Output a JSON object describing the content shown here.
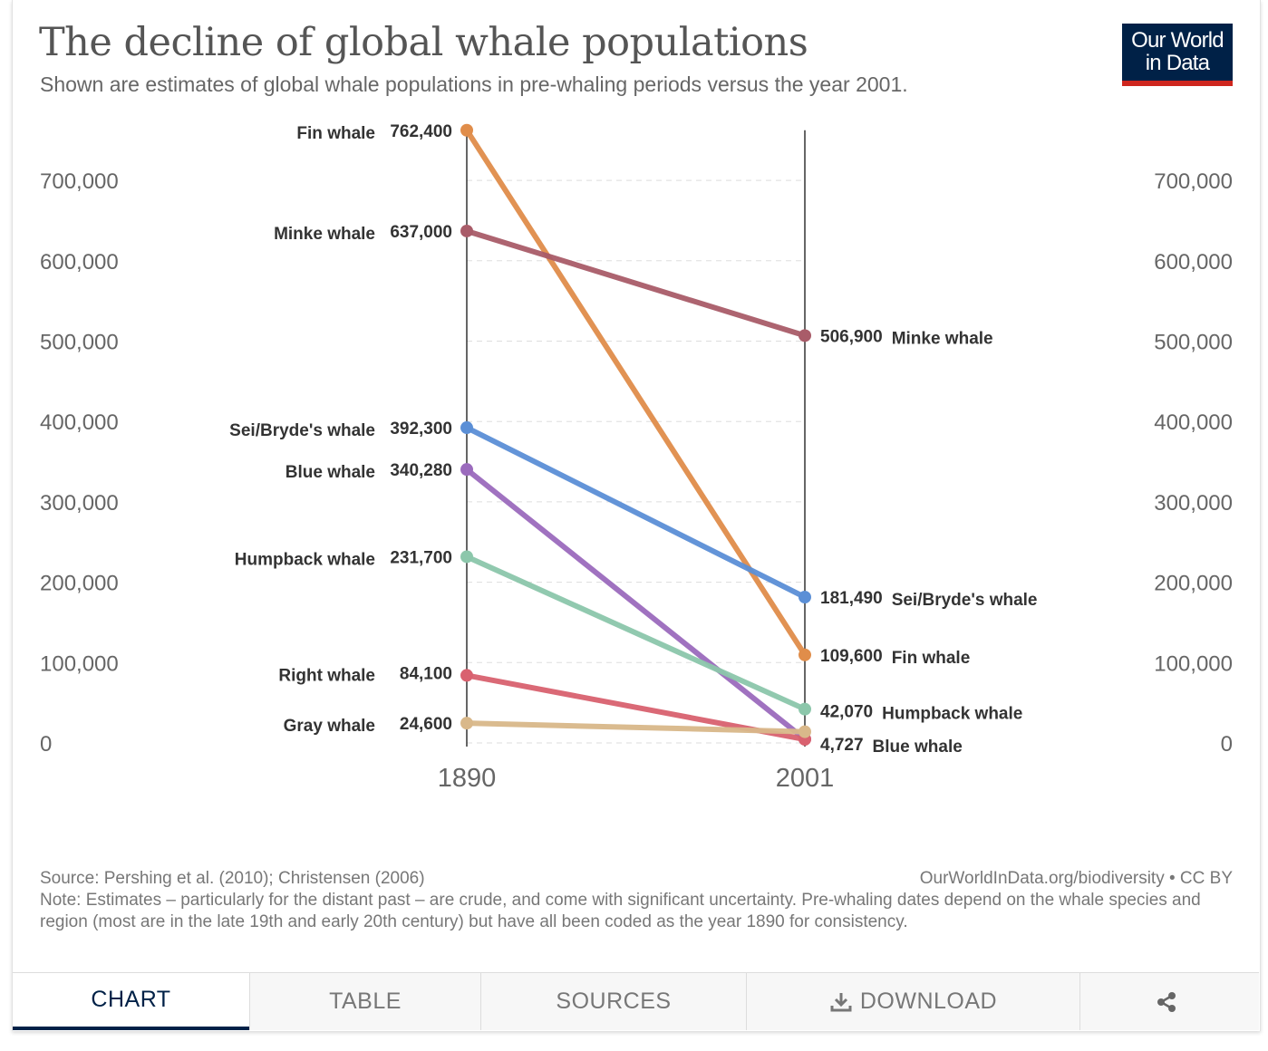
{
  "header": {
    "title": "The decline of global whale populations",
    "subtitle": "Shown are estimates of global whale populations in pre-whaling periods versus the year 2001.",
    "logo_line1": "Our World",
    "logo_line2": "in Data"
  },
  "chart_data": {
    "type": "line",
    "subtype": "slope",
    "x": [
      "1890",
      "2001"
    ],
    "ylim": [
      0,
      762400
    ],
    "yticks": [
      0,
      100000,
      200000,
      300000,
      400000,
      500000,
      600000,
      700000
    ],
    "ytick_labels": [
      "0",
      "100,000",
      "200,000",
      "300,000",
      "400,000",
      "500,000",
      "600,000",
      "700,000"
    ],
    "grid": true,
    "series": [
      {
        "name": "Fin whale",
        "color": "#e08d4a",
        "values": [
          762400,
          109600
        ],
        "labels": [
          "762,400",
          "109,600"
        ]
      },
      {
        "name": "Minke whale",
        "color": "#a95c69",
        "values": [
          637000,
          506900
        ],
        "labels": [
          "637,000",
          "506,900"
        ]
      },
      {
        "name": "Sei/Bryde's whale",
        "color": "#5b8fd6",
        "values": [
          392300,
          181490
        ],
        "labels": [
          "392,300",
          "181,490"
        ]
      },
      {
        "name": "Blue whale",
        "color": "#9b6bbd",
        "values": [
          340280,
          4727
        ],
        "labels": [
          "340,280",
          "4,727"
        ]
      },
      {
        "name": "Humpback whale",
        "color": "#8cc7ab",
        "values": [
          231700,
          42070
        ],
        "labels": [
          "231,700",
          "42,070"
        ]
      },
      {
        "name": "Right whale",
        "color": "#d9616f",
        "values": [
          84100,
          4500
        ],
        "labels": [
          "84,100",
          ""
        ]
      },
      {
        "name": "Gray whale",
        "color": "#d9b88a",
        "values": [
          24600,
          14000
        ],
        "labels": [
          "24,600",
          ""
        ]
      }
    ]
  },
  "footer": {
    "source": "Source: Pershing et al. (2010); Christensen (2006)",
    "url": "OurWorldInData.org/biodiversity • CC BY",
    "note": "Note: Estimates – particularly for the distant past – are crude, and come with significant uncertainty. Pre-whaling dates depend on the whale species and region (most are in the late 19th and early 20th century) but have all been coded as the year 1890 for consistency."
  },
  "tabs": {
    "chart": "CHART",
    "table": "TABLE",
    "sources": "SOURCES",
    "download": "DOWNLOAD",
    "download_icon": "download-icon",
    "share_icon": "share-icon"
  }
}
